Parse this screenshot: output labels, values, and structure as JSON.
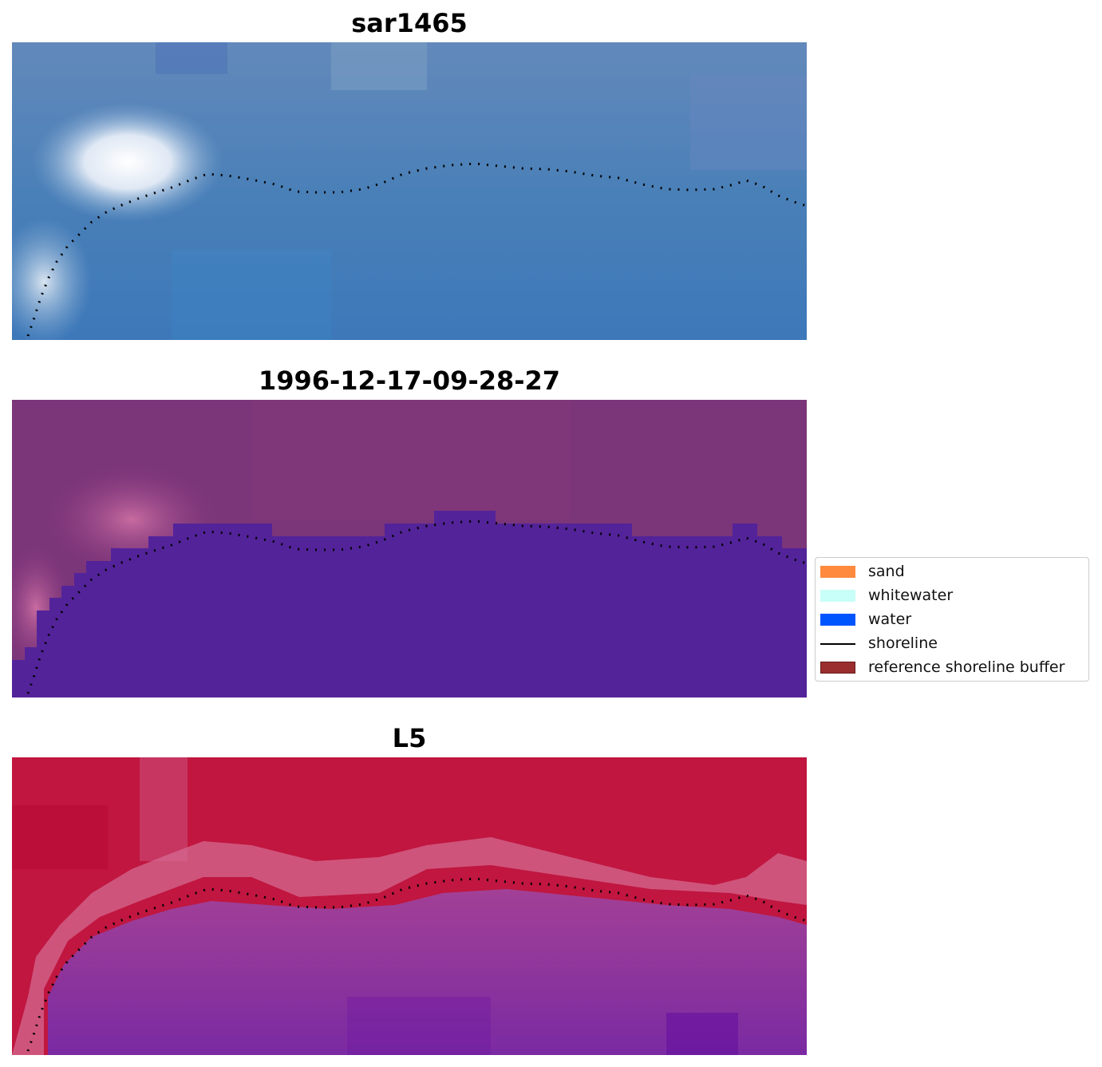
{
  "panels": [
    {
      "title": "sar1465",
      "colors": {
        "top": "#5f86b8",
        "bottom": "#3f79b8",
        "highlight": "#f2f4fb"
      }
    },
    {
      "title": "1996-12-17-09-28-27",
      "colors": {
        "land": "#7b3579",
        "water": "#53239a",
        "highlight": "#c06a9c"
      }
    },
    {
      "title": "L5",
      "colors": {
        "land": "#c0163f",
        "water": "#8a34a0",
        "edge": "#d46a92"
      }
    }
  ],
  "legend": {
    "items": [
      {
        "label": "sand",
        "color": "#ff8a3d",
        "kind": "patch"
      },
      {
        "label": "whitewater",
        "color": "#c8fff8",
        "kind": "patch"
      },
      {
        "label": "water",
        "color": "#0055ff",
        "kind": "patch"
      },
      {
        "label": "shoreline",
        "color": "#000000",
        "kind": "line"
      },
      {
        "label": "reference shoreline buffer",
        "color": "#9a2e2e",
        "kind": "patch"
      }
    ]
  }
}
